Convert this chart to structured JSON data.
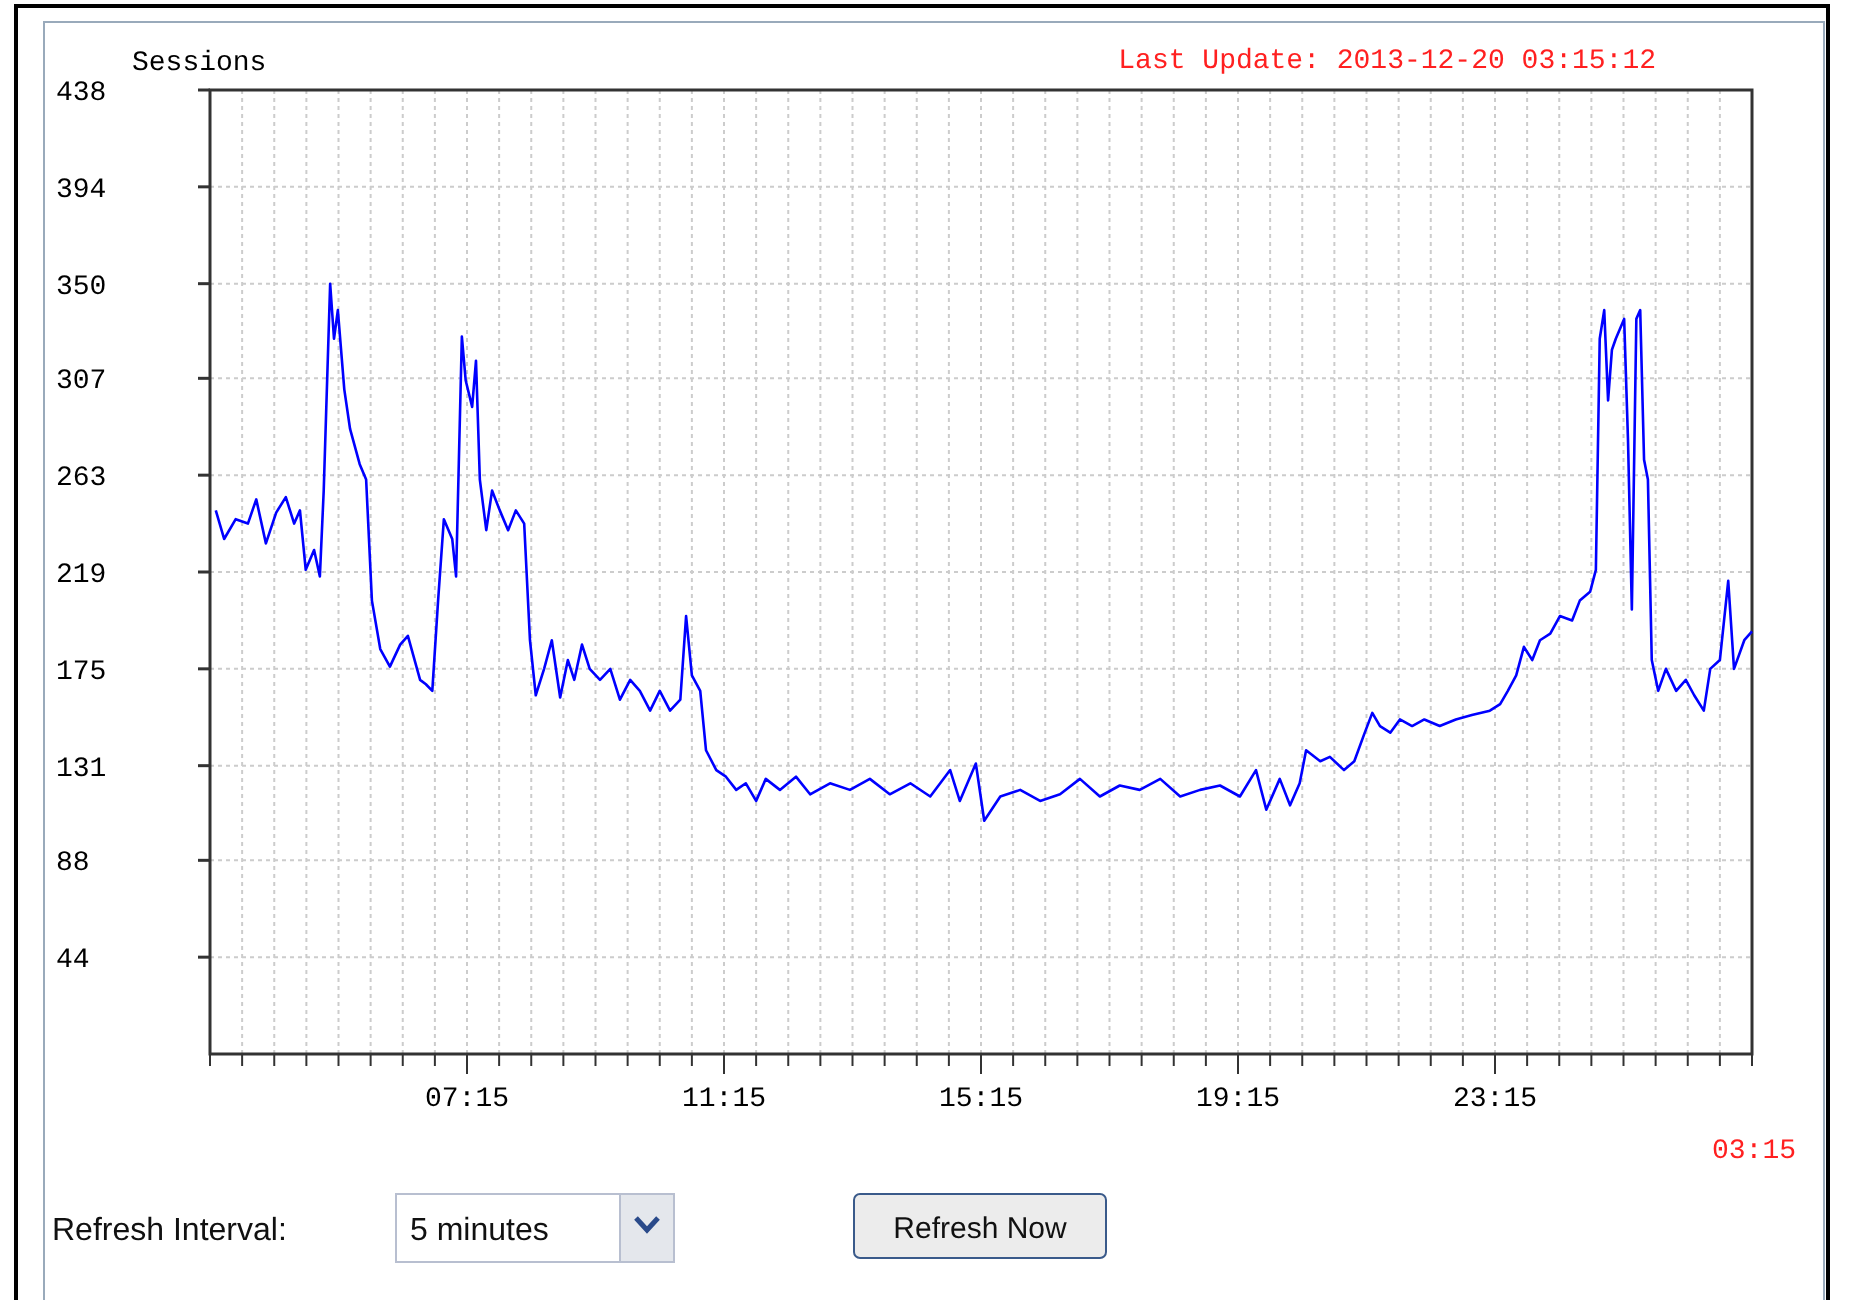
{
  "chart_data": {
    "type": "line",
    "subtitle": "Last Update: 2013-12-20 03:15:12",
    "ylabel": "Sessions",
    "xlim": [
      3.25,
      27.25
    ],
    "ylim": [
      0,
      438
    ],
    "yticks": [
      44,
      88,
      131,
      175,
      219,
      263,
      307,
      350,
      394,
      438
    ],
    "xticks": [
      {
        "value": 3.25,
        "label": null
      },
      {
        "value": 3.75,
        "label": null
      },
      {
        "value": 4.25,
        "label": null
      },
      {
        "value": 4.75,
        "label": null
      },
      {
        "value": 5.25,
        "label": null
      },
      {
        "value": 5.75,
        "label": null
      },
      {
        "value": 6.25,
        "label": null
      },
      {
        "value": 6.75,
        "label": null
      },
      {
        "value": 7.25,
        "label": "07:15"
      },
      {
        "value": 7.75,
        "label": null
      },
      {
        "value": 8.25,
        "label": null
      },
      {
        "value": 8.75,
        "label": null
      },
      {
        "value": 9.25,
        "label": null
      },
      {
        "value": 9.75,
        "label": null
      },
      {
        "value": 10.25,
        "label": null
      },
      {
        "value": 10.75,
        "label": null
      },
      {
        "value": 11.25,
        "label": "11:15"
      },
      {
        "value": 11.75,
        "label": null
      },
      {
        "value": 12.25,
        "label": null
      },
      {
        "value": 12.75,
        "label": null
      },
      {
        "value": 13.25,
        "label": null
      },
      {
        "value": 13.75,
        "label": null
      },
      {
        "value": 14.25,
        "label": null
      },
      {
        "value": 14.75,
        "label": null
      },
      {
        "value": 15.25,
        "label": "15:15"
      },
      {
        "value": 15.75,
        "label": null
      },
      {
        "value": 16.25,
        "label": null
      },
      {
        "value": 16.75,
        "label": null
      },
      {
        "value": 17.25,
        "label": null
      },
      {
        "value": 17.75,
        "label": null
      },
      {
        "value": 18.25,
        "label": null
      },
      {
        "value": 18.75,
        "label": null
      },
      {
        "value": 19.25,
        "label": "19:15"
      },
      {
        "value": 19.75,
        "label": null
      },
      {
        "value": 20.25,
        "label": null
      },
      {
        "value": 20.75,
        "label": null
      },
      {
        "value": 21.25,
        "label": null
      },
      {
        "value": 21.75,
        "label": null
      },
      {
        "value": 22.25,
        "label": null
      },
      {
        "value": 22.75,
        "label": null
      },
      {
        "value": 23.25,
        "label": "23:15"
      },
      {
        "value": 23.75,
        "label": null
      },
      {
        "value": 24.25,
        "label": null
      },
      {
        "value": 24.75,
        "label": null
      },
      {
        "value": 25.25,
        "label": null
      },
      {
        "value": 25.75,
        "label": null
      },
      {
        "value": 26.25,
        "label": null
      },
      {
        "value": 26.75,
        "label": null
      },
      {
        "value": 27.25,
        "label": null
      }
    ],
    "grid": true,
    "series": [
      {
        "color": "#0000ff",
        "x": [
          3.34,
          3.47,
          3.65,
          3.84,
          3.97,
          4.12,
          4.28,
          4.43,
          4.56,
          4.65,
          4.74,
          4.87,
          4.96,
          5.02,
          5.12,
          5.18,
          5.24,
          5.34,
          5.43,
          5.58,
          5.68,
          5.77,
          5.9,
          6.05,
          6.21,
          6.33,
          6.52,
          6.61,
          6.71,
          6.8,
          6.89,
          7.02,
          7.08,
          7.17,
          7.23,
          7.33,
          7.39,
          7.45,
          7.55,
          7.64,
          7.76,
          7.89,
          8.01,
          8.14,
          8.23,
          8.32,
          8.45,
          8.57,
          8.7,
          8.82,
          8.92,
          9.04,
          9.16,
          9.32,
          9.48,
          9.63,
          9.79,
          9.94,
          10.1,
          10.25,
          10.41,
          10.57,
          10.66,
          10.75,
          10.88,
          10.97,
          11.13,
          11.28,
          11.44,
          11.59,
          11.75,
          11.9,
          12.12,
          12.37,
          12.59,
          12.9,
          13.21,
          13.52,
          13.83,
          14.15,
          14.46,
          14.77,
          14.92,
          15.17,
          15.3,
          15.55,
          15.86,
          16.17,
          16.48,
          16.79,
          17.1,
          17.41,
          17.72,
          18.04,
          18.35,
          18.66,
          18.97,
          19.28,
          19.53,
          19.69,
          19.9,
          20.06,
          20.21,
          20.31,
          20.53,
          20.68,
          20.9,
          21.06,
          21.21,
          21.34,
          21.46,
          21.62,
          21.77,
          21.96,
          22.15,
          22.39,
          22.64,
          22.89,
          23.17,
          23.33,
          23.45,
          23.58,
          23.7,
          23.83,
          23.95,
          24.11,
          24.26,
          24.45,
          24.57,
          24.73,
          24.82,
          24.88,
          24.95,
          25.01,
          25.07,
          25.13,
          25.26,
          25.32,
          25.38,
          25.45,
          25.51,
          25.57,
          25.63,
          25.69,
          25.79,
          25.91,
          26.07,
          26.22,
          26.35,
          26.5,
          26.6,
          26.75,
          26.88,
          26.97,
          27.13,
          27.25
        ],
        "values": [
          247,
          234,
          243,
          241,
          252,
          232,
          246,
          253,
          241,
          247,
          220,
          229,
          217,
          256,
          350,
          325,
          338,
          302,
          284,
          268,
          261,
          206,
          184,
          176,
          186,
          190,
          170,
          168,
          165,
          206,
          243,
          234,
          217,
          326,
          306,
          294,
          315,
          261,
          238,
          256,
          247,
          238,
          247,
          241,
          188,
          163,
          175,
          188,
          162,
          179,
          170,
          186,
          175,
          170,
          175,
          161,
          170,
          165,
          156,
          165,
          156,
          161,
          199,
          172,
          165,
          138,
          129,
          126,
          120,
          123,
          115,
          125,
          120,
          126,
          118,
          123,
          120,
          125,
          118,
          123,
          117,
          129,
          115,
          132,
          106,
          117,
          120,
          115,
          118,
          125,
          117,
          122,
          120,
          125,
          117,
          120,
          122,
          117,
          129,
          111,
          125,
          113,
          123,
          138,
          133,
          135,
          129,
          133,
          145,
          155,
          149,
          146,
          152,
          149,
          152,
          149,
          152,
          154,
          156,
          159,
          165,
          172,
          185,
          179,
          188,
          191,
          199,
          197,
          206,
          210,
          220,
          325,
          338,
          297,
          320,
          325,
          334,
          279,
          202,
          334,
          338,
          270,
          261,
          179,
          165,
          175,
          165,
          170,
          163,
          156,
          175,
          179,
          215,
          175,
          188,
          192
        ]
      }
    ],
    "annotations": [
      "03:15",
      "Refresh Interval:",
      "5 minutes",
      "Refresh Now"
    ]
  }
}
